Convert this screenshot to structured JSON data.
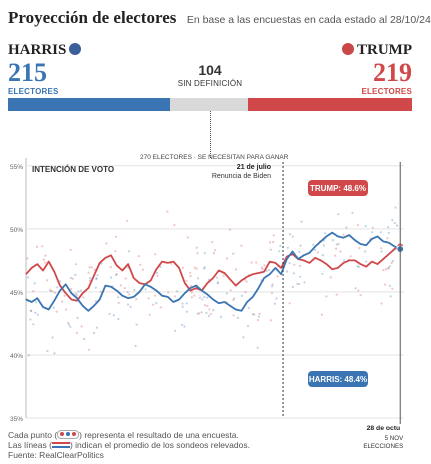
{
  "header": {
    "title": "Proyección de electores",
    "subtitle": "En base a las encuestas en cada estado al 28/10/24"
  },
  "tracker": {
    "left": {
      "name": "HARRIS",
      "votes": "215",
      "label": "ELECTORES",
      "color": "#3a74b3"
    },
    "right": {
      "name": "TRUMP",
      "votes": "219",
      "label": "ELECTORES",
      "color": "#d1484a"
    },
    "undecided": {
      "votes": "104",
      "label": "SIN DEFINICIÓN",
      "color": "#d9d9d9"
    },
    "threshold_label": "270 ELECTORES · SE NECESITAN PARA GANAR",
    "counts": {
      "harris": 215,
      "undecided": 104,
      "trump": 219
    }
  },
  "chart_data": {
    "type": "line",
    "title": "INTENCIÓN DE VOTO",
    "y_tick_labels": [
      "35%",
      "40%",
      "45%",
      "50%",
      "55%"
    ],
    "y_ticks": [
      35,
      40,
      45,
      50,
      55
    ],
    "ylim": [
      35,
      55.3
    ],
    "xlim": [
      0,
      100
    ],
    "grid": true,
    "annotation": {
      "x": 68,
      "date": "21 de julio",
      "label": "Renuncia de Biden"
    },
    "end_marker": {
      "x": 99,
      "date": "28 de octu"
    },
    "election_marker": {
      "label": "5 NOV\nELECCIONES"
    },
    "series": [
      {
        "name": "TRUMP",
        "end_label": "TRUMP: 48.6%",
        "color": "#d1484a",
        "x": [
          0,
          1.5,
          3,
          4.5,
          6,
          7.5,
          9,
          10.5,
          12,
          13.5,
          15,
          16.5,
          18,
          19.5,
          21,
          22.5,
          24,
          25.5,
          27,
          28.5,
          30,
          31.5,
          33,
          34.5,
          36,
          37.5,
          39,
          40.5,
          42,
          43.5,
          45,
          46.5,
          48,
          49.5,
          51,
          52.5,
          54,
          55.5,
          57,
          58.5,
          60,
          61.5,
          63,
          64.5,
          66,
          67.5,
          69,
          70.5,
          72,
          73.5,
          75,
          76.5,
          78,
          79.5,
          81,
          82.5,
          84,
          85.5,
          87,
          88.5,
          90,
          91.5,
          93,
          94.5,
          96,
          97.5,
          99
        ],
        "y": [
          46.4,
          46.9,
          47.2,
          46.7,
          47.4,
          46.6,
          45.5,
          44.9,
          44.4,
          44.3,
          44.9,
          45.3,
          46.3,
          47.3,
          47.7,
          47.9,
          47.1,
          46.7,
          47.2,
          46.1,
          45.7,
          45.6,
          45.9,
          46.8,
          47.4,
          47.3,
          47.4,
          46.9,
          45.7,
          45.1,
          45.3,
          45.1,
          45.7,
          46.1,
          46.7,
          46.5,
          46.0,
          45.5,
          45.9,
          46.2,
          46.4,
          46.5,
          46.6,
          47.4,
          47.3,
          46.9,
          47.8,
          48.0,
          47.6,
          47.5,
          47.3,
          47.7,
          47.5,
          47.2,
          46.8,
          46.9,
          47.3,
          47.5,
          47.5,
          47.2,
          47.0,
          47.4,
          47.2,
          47.6,
          48.0,
          48.4,
          48.6
        ]
      },
      {
        "name": "HARRIS",
        "end_label": "HARRIS: 48.4%",
        "color": "#3a74b3",
        "x": [
          0,
          1.5,
          3,
          4.5,
          6,
          7.5,
          9,
          10.5,
          12,
          13.5,
          15,
          16.5,
          18,
          19.5,
          21,
          22.5,
          24,
          25.5,
          27,
          28.5,
          30,
          31.5,
          33,
          34.5,
          36,
          37.5,
          39,
          40.5,
          42,
          43.5,
          45,
          46.5,
          48,
          49.5,
          51,
          52.5,
          54,
          55.5,
          57,
          58.5,
          60,
          61.5,
          63,
          64.5,
          66,
          67.5,
          69,
          70.5,
          72,
          73.5,
          75,
          76.5,
          78,
          79.5,
          81,
          82.5,
          84,
          85.5,
          87,
          88.5,
          90,
          91.5,
          93,
          94.5,
          96,
          97.5,
          99
        ],
        "y": [
          44.4,
          44.2,
          44.5,
          43.8,
          43.6,
          44.3,
          45.1,
          45.6,
          44.9,
          44.5,
          43.9,
          43.5,
          43.9,
          44.4,
          45.5,
          45.4,
          45.1,
          44.7,
          44.5,
          44.6,
          45.0,
          45.6,
          45.4,
          45.1,
          44.7,
          44.6,
          44.2,
          44.4,
          44.9,
          45.3,
          45.5,
          45.1,
          44.8,
          44.4,
          44.1,
          44.2,
          43.9,
          43.6,
          43.5,
          44.2,
          44.6,
          45.3,
          46.1,
          46.4,
          46.9,
          46.4,
          47.6,
          48.2,
          47.6,
          47.9,
          48.1,
          48.6,
          49.0,
          49.4,
          49.7,
          49.4,
          49.3,
          49.5,
          49.1,
          48.8,
          48.7,
          49.2,
          49.4,
          49.0,
          48.9,
          48.6,
          48.4
        ]
      }
    ]
  },
  "footer": {
    "line1_a": "Cada punto (",
    "line1_b": ") representa el resultado de una encuesta.",
    "line2_a": "Las líneas (",
    "line2_b": ") indican el promedio de los sondeos relevados.",
    "line3": "Fuente: RealClearPolitics"
  }
}
